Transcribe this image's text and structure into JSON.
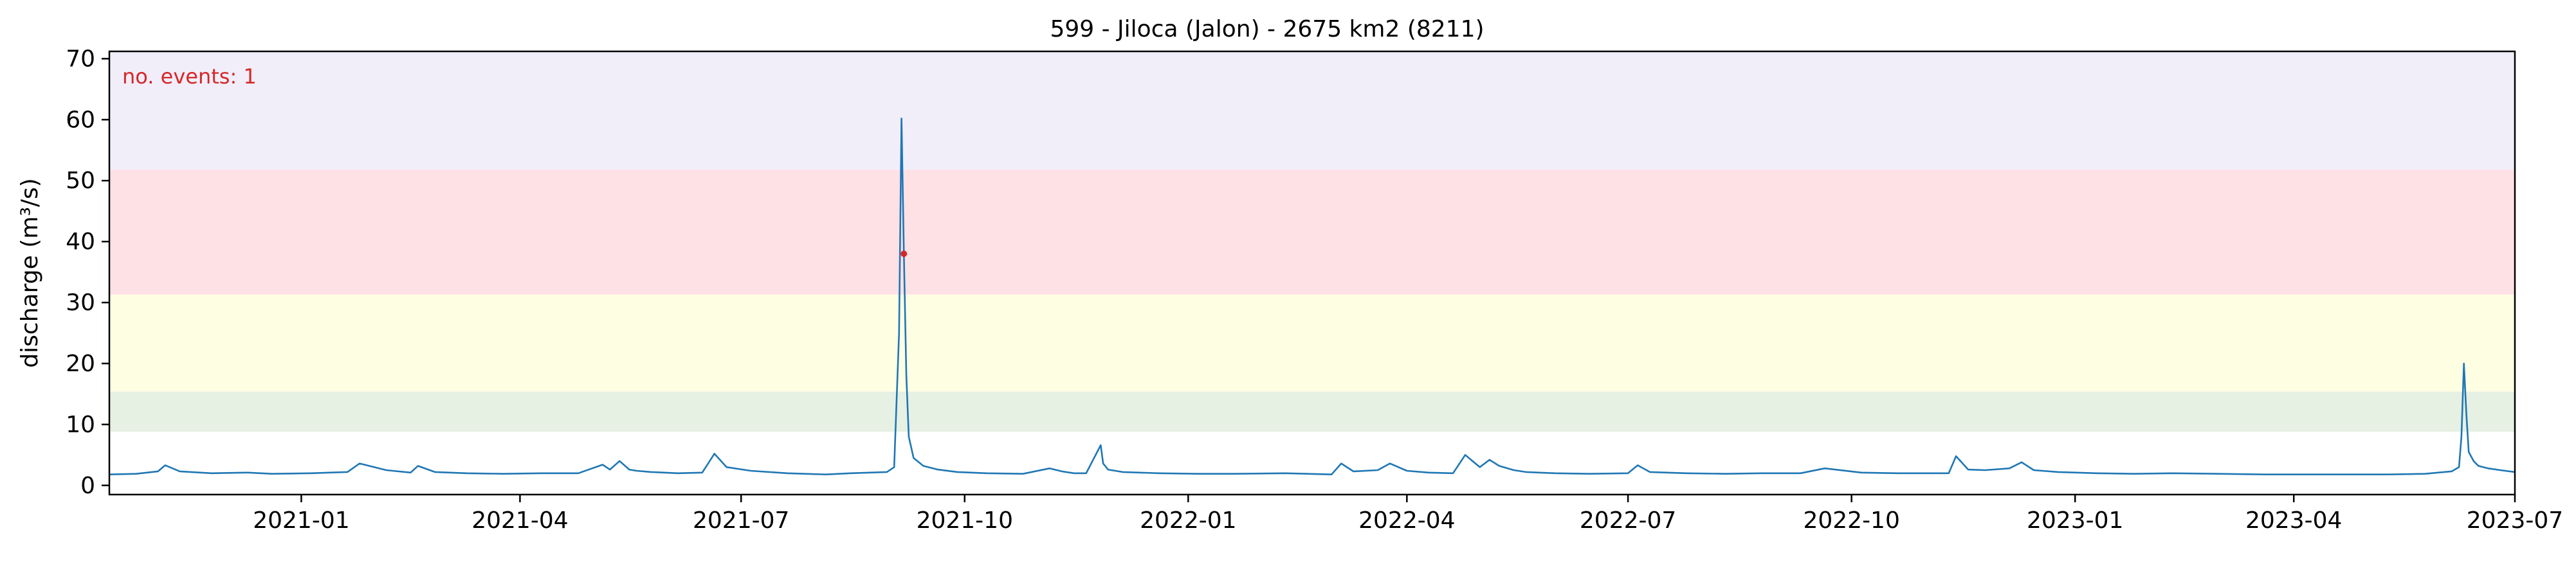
{
  "chart_data": {
    "type": "line",
    "title": "599 - Jiloca (Jalon) - 2675 km2 (8211)",
    "xlabel": "",
    "ylabel": "discharge (m³/s)",
    "annotation": "no. events: 1",
    "xlim": [
      "2020-10-14",
      "2023-07-01"
    ],
    "ylim": [
      -1.5,
      71.2
    ],
    "x_ticks": [
      "2021-01",
      "2021-04",
      "2021-07",
      "2021-10",
      "2022-01",
      "2022-04",
      "2022-07",
      "2022-10",
      "2023-01",
      "2023-04",
      "2023-07"
    ],
    "x_tick_dates": [
      "2021-01-01",
      "2021-04-01",
      "2021-07-01",
      "2021-10-01",
      "2022-01-01",
      "2022-04-01",
      "2022-07-01",
      "2022-10-01",
      "2023-01-01",
      "2023-04-01",
      "2023-07-01"
    ],
    "y_ticks": [
      0,
      10,
      20,
      30,
      40,
      50,
      60,
      70
    ],
    "threshold_bands": [
      {
        "from": 8.8,
        "to": 15.4,
        "color": "#e6f0e3"
      },
      {
        "from": 15.4,
        "to": 31.3,
        "color": "#fefee3"
      },
      {
        "from": 31.3,
        "to": 51.8,
        "color": "#fee1e5"
      },
      {
        "from": 51.8,
        "to": 71.2,
        "color": "#f1eefa"
      }
    ],
    "series": [
      {
        "color": "#1f77b4",
        "x": [
          "2020-10-14",
          "2020-10-25",
          "2020-11-03",
          "2020-11-06",
          "2020-11-12",
          "2020-11-25",
          "2020-12-10",
          "2020-12-20",
          "2021-01-05",
          "2021-01-20",
          "2021-01-25",
          "2021-02-05",
          "2021-02-15",
          "2021-02-18",
          "2021-02-25",
          "2021-03-10",
          "2021-03-25",
          "2021-04-10",
          "2021-04-25",
          "2021-05-05",
          "2021-05-08",
          "2021-05-12",
          "2021-05-16",
          "2021-05-19",
          "2021-05-25",
          "2021-06-05",
          "2021-06-15",
          "2021-06-20",
          "2021-06-25",
          "2021-07-05",
          "2021-07-20",
          "2021-08-05",
          "2021-08-15",
          "2021-08-30",
          "2021-09-02",
          "2021-09-04",
          "2021-09-05",
          "2021-09-06",
          "2021-09-07",
          "2021-09-08",
          "2021-09-10",
          "2021-09-14",
          "2021-09-20",
          "2021-09-28",
          "2021-10-10",
          "2021-10-25",
          "2021-11-05",
          "2021-11-10",
          "2021-11-15",
          "2021-11-20",
          "2021-11-26",
          "2021-11-27",
          "2021-11-29",
          "2021-12-05",
          "2021-12-20",
          "2022-01-05",
          "2022-01-20",
          "2022-02-10",
          "2022-03-01",
          "2022-03-05",
          "2022-03-10",
          "2022-03-20",
          "2022-03-25",
          "2022-04-01",
          "2022-04-10",
          "2022-04-20",
          "2022-04-25",
          "2022-05-01",
          "2022-05-05",
          "2022-05-09",
          "2022-05-15",
          "2022-05-20",
          "2022-06-01",
          "2022-06-15",
          "2022-07-01",
          "2022-07-05",
          "2022-07-10",
          "2022-07-25",
          "2022-08-10",
          "2022-08-25",
          "2022-09-10",
          "2022-09-20",
          "2022-10-05",
          "2022-10-20",
          "2022-11-01",
          "2022-11-10",
          "2022-11-13",
          "2022-11-18",
          "2022-11-25",
          "2022-12-05",
          "2022-12-10",
          "2022-12-15",
          "2022-12-25",
          "2023-01-10",
          "2023-01-25",
          "2023-02-10",
          "2023-03-01",
          "2023-03-20",
          "2023-04-10",
          "2023-04-25",
          "2023-05-10",
          "2023-05-25",
          "2023-06-05",
          "2023-06-08",
          "2023-06-09",
          "2023-06-10",
          "2023-06-11",
          "2023-06-12",
          "2023-06-14",
          "2023-06-16",
          "2023-06-20",
          "2023-06-25",
          "2023-07-01"
        ],
        "y": [
          1.8,
          1.9,
          2.3,
          3.3,
          2.3,
          2.0,
          2.1,
          1.9,
          2.0,
          2.2,
          3.6,
          2.5,
          2.1,
          3.2,
          2.2,
          2.0,
          1.9,
          2.0,
          2.0,
          3.4,
          2.6,
          4.0,
          2.6,
          2.4,
          2.2,
          2.0,
          2.1,
          5.2,
          3.0,
          2.4,
          2.0,
          1.8,
          2.0,
          2.2,
          3.0,
          25,
          60.2,
          38.0,
          18,
          8,
          4.5,
          3.2,
          2.6,
          2.2,
          2.0,
          1.9,
          2.8,
          2.3,
          2.0,
          2.0,
          6.6,
          3.6,
          2.6,
          2.2,
          2.0,
          1.9,
          1.9,
          2.0,
          1.8,
          3.6,
          2.3,
          2.5,
          3.6,
          2.4,
          2.1,
          2.0,
          5.0,
          3.0,
          4.2,
          3.2,
          2.5,
          2.2,
          2.0,
          1.9,
          2.0,
          3.3,
          2.2,
          2.0,
          1.9,
          2.0,
          2.0,
          2.8,
          2.1,
          2.0,
          2.0,
          2.0,
          4.8,
          2.6,
          2.5,
          2.8,
          3.8,
          2.5,
          2.2,
          2.0,
          1.9,
          2.0,
          1.9,
          1.8,
          1.8,
          1.8,
          1.8,
          1.9,
          2.3,
          3.0,
          8,
          20,
          12,
          5.5,
          4.0,
          3.2,
          2.8,
          2.5,
          2.2
        ]
      }
    ],
    "event_markers": [
      {
        "x": "2021-09-06",
        "y": 38.0,
        "color": "#d62728"
      }
    ]
  }
}
